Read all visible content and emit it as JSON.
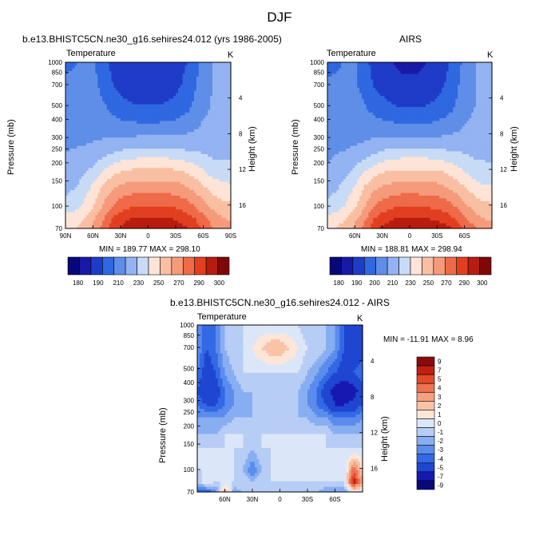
{
  "page": {
    "title": "DJF"
  },
  "colors": {
    "temperature_scale": [
      "#08087a",
      "#1919a8",
      "#1f3cc8",
      "#2f68e0",
      "#5f8ee8",
      "#93b3f2",
      "#c8dbf6",
      "#fde4d6",
      "#f9bfa3",
      "#f59a7a",
      "#ee6a48",
      "#e13f20",
      "#b81c10",
      "#7e0808"
    ],
    "difference_scale": [
      "#08087a",
      "#1619b0",
      "#1f46d0",
      "#3369e6",
      "#5b8ced",
      "#88aef2",
      "#b7cdf5",
      "#dbe7f8",
      "#fde6d8",
      "#f9c3a8",
      "#f5a07f",
      "#ef7252",
      "#e34a2a",
      "#c11f12",
      "#8b0a0a"
    ]
  },
  "charts": [
    {
      "title": "b.e13.BHISTC5CN.ne30_g16.sehires24.012 (yrs 1986-2005)",
      "variable": "Temperature",
      "units": "K",
      "stats": "MIN = 189.77   MAX = 298.10"
    },
    {
      "title": "AIRS",
      "variable": "Temperature",
      "units": "K",
      "stats": "MIN = 188.81   MAX = 298.94"
    },
    {
      "title": "b.e13.BHISTC5CN.ne30_g16.sehires24.012 - AIRS",
      "variable": "Temperature",
      "units": "K",
      "stats": "MIN = -11.91   MAX =   8.96"
    }
  ],
  "chart_data": [
    {
      "type": "heatmap",
      "title": "b.e13.BHISTC5CN.ne30_g16.sehires24.012 (yrs 1986-2005)",
      "xlabel": "",
      "ylabel": "Pressure (mb)",
      "y2label": "Height (km)",
      "x_ticks": [
        "90N",
        "60N",
        "30N",
        "0",
        "30S",
        "60S",
        "90S"
      ],
      "x_range": [
        90,
        -90
      ],
      "y_ticks": [
        "70",
        "100",
        "150",
        "200",
        "250",
        "300",
        "400",
        "500",
        "700",
        "850",
        "1000"
      ],
      "y_range_mb": [
        1000,
        70
      ],
      "y2_ticks": [
        "4",
        "8",
        "12",
        "16"
      ],
      "latitudes": [
        90,
        80,
        70,
        60,
        50,
        40,
        30,
        20,
        10,
        0,
        -10,
        -20,
        -30,
        -40,
        -50,
        -60,
        -70,
        -80,
        -90
      ],
      "pressure_levels": [
        70,
        100,
        150,
        200,
        250,
        300,
        400,
        500,
        700,
        850,
        1000
      ],
      "values": [
        [
          207,
          209,
          212,
          212,
          205,
          198,
          194,
          191,
          190,
          190,
          190,
          191,
          194,
          199,
          205,
          214,
          220,
          224,
          226
        ],
        [
          213,
          214,
          215,
          213,
          207,
          201,
          197,
          194,
          192,
          192,
          192,
          194,
          197,
          202,
          208,
          216,
          220,
          223,
          224
        ],
        [
          217,
          217,
          217,
          216,
          213,
          209,
          205,
          203,
          202,
          202,
          202,
          203,
          205,
          208,
          212,
          218,
          221,
          222,
          222
        ],
        [
          218,
          218,
          218,
          218,
          217,
          216,
          215,
          214,
          214,
          214,
          214,
          214,
          215,
          217,
          219,
          222,
          223,
          224,
          224
        ],
        [
          219,
          219,
          219,
          220,
          221,
          222,
          223,
          224,
          225,
          225,
          225,
          225,
          224,
          224,
          224,
          225,
          226,
          226,
          226
        ],
        [
          220,
          221,
          222,
          224,
          227,
          230,
          233,
          235,
          236,
          236,
          236,
          236,
          235,
          233,
          232,
          230,
          228,
          228,
          228
        ],
        [
          222,
          224,
          228,
          233,
          240,
          246,
          250,
          252,
          253,
          253,
          253,
          253,
          252,
          250,
          246,
          241,
          236,
          234,
          233
        ],
        [
          226,
          229,
          234,
          241,
          250,
          257,
          261,
          263,
          264,
          264,
          264,
          264,
          263,
          260,
          256,
          250,
          245,
          242,
          241
        ],
        [
          234,
          237,
          242,
          250,
          260,
          270,
          276,
          279,
          281,
          281,
          281,
          280,
          279,
          276,
          271,
          264,
          258,
          254,
          253
        ],
        [
          244,
          246,
          250,
          258,
          268,
          280,
          286,
          290,
          292,
          292,
          292,
          291,
          289,
          286,
          281,
          273,
          266,
          261,
          259
        ],
        [
          248,
          250,
          254,
          262,
          272,
          284,
          291,
          296,
          298,
          298,
          298,
          297,
          295,
          292,
          287,
          279,
          271,
          266,
          263
        ]
      ],
      "contour_levels": [
        180,
        190,
        200,
        210,
        220,
        230,
        240,
        250,
        260,
        270,
        280,
        290,
        300
      ],
      "colorbar_labels": [
        "180",
        "190",
        "210",
        "230",
        "250",
        "270",
        "290",
        "300"
      ],
      "min": 189.77,
      "max": 298.1
    },
    {
      "type": "heatmap",
      "title": "AIRS",
      "xlabel": "",
      "ylabel": "Pressure (mb)",
      "y2label": "Height (km)",
      "x_ticks": [
        "60N",
        "30N",
        "0",
        "30S",
        "60S"
      ],
      "x_range": [
        90,
        -90
      ],
      "y_ticks": [
        "70",
        "100",
        "150",
        "200",
        "250",
        "300",
        "400",
        "500",
        "700",
        "850",
        "1000"
      ],
      "y_range_mb": [
        1000,
        70
      ],
      "y2_ticks": [
        "4",
        "8",
        "12",
        "16"
      ],
      "latitudes": [
        90,
        80,
        70,
        60,
        50,
        40,
        30,
        20,
        10,
        0,
        -10,
        -20,
        -30,
        -40,
        -50,
        -60,
        -70,
        -80,
        -90
      ],
      "pressure_levels": [
        70,
        100,
        150,
        200,
        250,
        300,
        400,
        500,
        700,
        850,
        1000
      ],
      "values": [
        [
          206,
          208,
          211,
          211,
          204,
          197,
          193,
          190,
          189,
          189,
          189,
          190,
          193,
          198,
          204,
          213,
          219,
          223,
          225
        ],
        [
          212,
          213,
          214,
          212,
          206,
          200,
          196,
          193,
          191,
          191,
          191,
          193,
          196,
          201,
          207,
          215,
          219,
          222,
          223
        ],
        [
          216,
          216,
          216,
          215,
          212,
          208,
          205,
          203,
          201,
          201,
          201,
          202,
          204,
          207,
          211,
          217,
          220,
          221,
          221
        ],
        [
          217,
          217,
          217,
          217,
          216,
          216,
          215,
          214,
          213,
          213,
          213,
          213,
          214,
          216,
          218,
          221,
          222,
          223,
          223
        ],
        [
          218,
          218,
          218,
          219,
          220,
          222,
          223,
          224,
          225,
          225,
          225,
          225,
          224,
          224,
          224,
          225,
          226,
          226,
          226
        ],
        [
          219,
          220,
          221,
          223,
          226,
          229,
          233,
          235,
          236,
          236,
          236,
          236,
          235,
          233,
          232,
          230,
          228,
          228,
          228
        ],
        [
          221,
          223,
          227,
          232,
          239,
          245,
          249,
          251,
          252,
          252,
          252,
          252,
          251,
          249,
          245,
          240,
          235,
          233,
          232
        ],
        [
          225,
          228,
          233,
          240,
          249,
          256,
          260,
          262,
          263,
          263,
          263,
          263,
          262,
          259,
          255,
          249,
          244,
          241,
          240
        ],
        [
          233,
          236,
          241,
          249,
          259,
          269,
          275,
          278,
          280,
          280,
          280,
          279,
          278,
          275,
          270,
          263,
          257,
          253,
          252
        ],
        [
          243,
          245,
          249,
          257,
          267,
          279,
          285,
          289,
          291,
          291,
          291,
          290,
          288,
          285,
          280,
          272,
          265,
          260,
          258
        ],
        [
          249,
          251,
          255,
          263,
          273,
          285,
          292,
          297,
          299,
          299,
          299,
          298,
          296,
          293,
          288,
          280,
          272,
          267,
          264
        ]
      ],
      "contour_levels": [
        180,
        190,
        200,
        210,
        220,
        230,
        240,
        250,
        260,
        270,
        280,
        290,
        300
      ],
      "colorbar_labels": [
        "180",
        "190",
        "200",
        "210",
        "230",
        "250",
        "270",
        "290",
        "300"
      ],
      "min": 188.81,
      "max": 298.94
    },
    {
      "type": "heatmap",
      "title": "b.e13.BHISTC5CN.ne30_g16.sehires24.012 - AIRS",
      "xlabel": "",
      "ylabel": "Pressure (mb)",
      "y2label": "Height (km)",
      "x_ticks": [
        "60N",
        "30N",
        "0",
        "30S",
        "60S"
      ],
      "x_range": [
        90,
        -90
      ],
      "y_ticks": [
        "70",
        "100",
        "150",
        "200",
        "250",
        "300",
        "400",
        "500",
        "700",
        "850",
        "1000"
      ],
      "y_range_mb": [
        1000,
        70
      ],
      "y2_ticks": [
        "4",
        "8",
        "12",
        "16"
      ],
      "latitudes": [
        90,
        80,
        70,
        60,
        50,
        40,
        30,
        20,
        10,
        0,
        -10,
        -20,
        -30,
        -40,
        -50,
        -60,
        -70,
        -80,
        -90
      ],
      "pressure_levels": [
        70,
        100,
        150,
        200,
        250,
        300,
        400,
        500,
        700,
        850,
        1000
      ],
      "values": [
        [
          -3,
          -5,
          -4,
          -2,
          -2,
          -1,
          -1,
          -1,
          -1,
          -1,
          -1,
          -1,
          -2,
          -2,
          -2,
          -3,
          -5,
          -6,
          -5
        ],
        [
          -3,
          -5,
          -4,
          -2,
          -1,
          -1,
          0,
          1,
          2,
          2,
          1,
          0,
          -1,
          -1,
          -2,
          -3,
          -5,
          -6,
          -6
        ],
        [
          -4,
          -6,
          -5,
          -3,
          -2,
          -1,
          -1,
          -1,
          -1,
          -1,
          -1,
          -1,
          -2,
          -3,
          -4,
          -5,
          -6,
          -5,
          -4
        ],
        [
          -5,
          -7,
          -6,
          -4,
          -3,
          -2,
          -2,
          -2,
          -2,
          -2,
          -2,
          -2,
          -3,
          -4,
          -6,
          -8,
          -9,
          -8,
          -6
        ],
        [
          -4,
          -5,
          -5,
          -4,
          -3,
          -3,
          -2,
          -2,
          -2,
          -2,
          -2,
          -2,
          -3,
          -4,
          -5,
          -7,
          -7,
          -6,
          -5
        ],
        [
          -3,
          -3,
          -3,
          -3,
          -2,
          -2,
          -2,
          -2,
          -2,
          -2,
          -2,
          -2,
          -2,
          -3,
          -3,
          -4,
          -4,
          -4,
          -3
        ],
        [
          -2,
          -2,
          -2,
          -1,
          -1,
          -1,
          -1,
          -1,
          -1,
          -1,
          -1,
          -1,
          -1,
          -1,
          -1,
          -2,
          -2,
          -2,
          -2
        ],
        [
          -1,
          -1,
          -1,
          -1,
          -1,
          -1,
          -2,
          -1,
          -1,
          -1,
          -1,
          -1,
          -1,
          -1,
          -1,
          -1,
          -1,
          -1,
          -1
        ],
        [
          -1,
          -1,
          -1,
          -1,
          -1,
          -2,
          -4,
          -2,
          -1,
          -1,
          -1,
          -1,
          -1,
          -1,
          -1,
          -1,
          -1,
          4,
          1
        ],
        [
          -2,
          0,
          -1,
          -1,
          -1,
          -1,
          -2,
          -1,
          -1,
          -1,
          -1,
          -1,
          -1,
          -1,
          -1,
          -1,
          -1,
          6,
          2
        ],
        [
          -5,
          -5,
          -4,
          3,
          -3,
          -2,
          -2,
          -2,
          -2,
          -2,
          -2,
          -2,
          -2,
          -2,
          -3,
          -3,
          -3,
          0,
          -1
        ]
      ],
      "contour_levels": [
        -9,
        -7,
        -5,
        -4,
        -3,
        -2,
        -1,
        0,
        1,
        2,
        3,
        4,
        5,
        7,
        9
      ],
      "colorbar_labels": [
        "9",
        "7",
        "5",
        "4",
        "3",
        "2",
        "1",
        "0",
        "-1",
        "-2",
        "-3",
        "-4",
        "-5",
        "-7",
        "-9"
      ],
      "min": -11.91,
      "max": 8.96
    }
  ]
}
